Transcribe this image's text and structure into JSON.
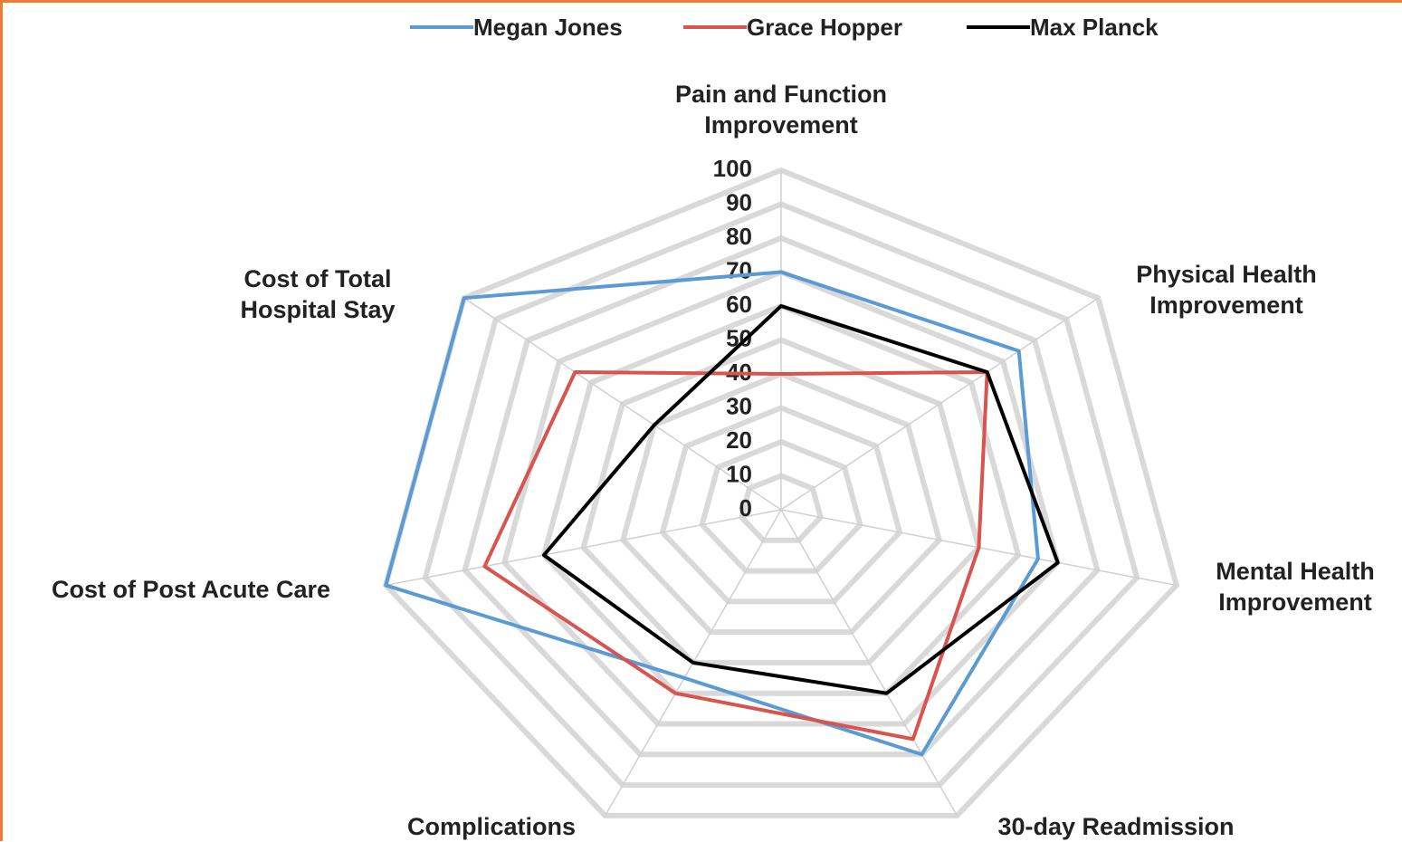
{
  "chart_data": {
    "type": "radar",
    "categories": [
      "Pain and Function Improvement",
      "Physical Health Improvement",
      "Mental Health Improvement",
      "30-day Readmission",
      "Complications",
      "Cost of Post Acute Care",
      "Cost of Total Hospital Stay"
    ],
    "series": [
      {
        "name": "Megan Jones",
        "color": "#5b9bd5",
        "values": [
          70,
          75,
          65,
          80,
          55,
          100,
          100
        ]
      },
      {
        "name": "Grace Hopper",
        "color": "#d9534f",
        "values": [
          40,
          65,
          50,
          75,
          60,
          75,
          65
        ]
      },
      {
        "name": "Max Planck",
        "color": "#000000",
        "values": [
          60,
          65,
          70,
          60,
          50,
          60,
          40
        ]
      }
    ],
    "ylim": [
      0,
      100
    ],
    "yticks": [
      0,
      10,
      20,
      30,
      40,
      50,
      60,
      70,
      80,
      90,
      100
    ],
    "grid": true,
    "legend": "top"
  }
}
